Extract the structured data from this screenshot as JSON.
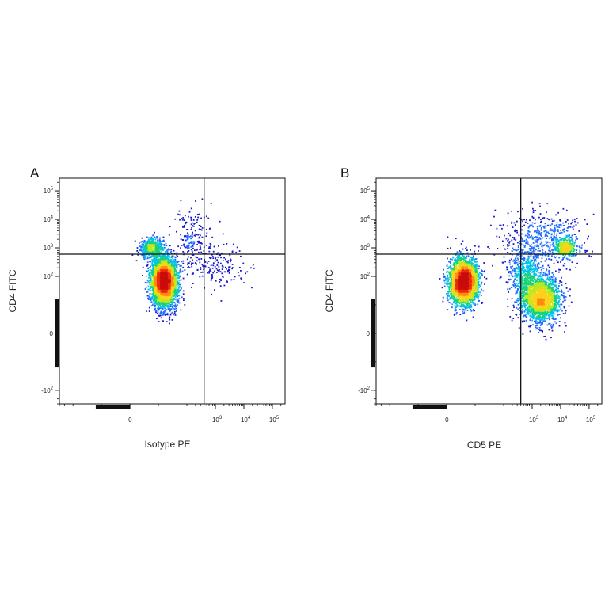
{
  "chart_data": [
    {
      "type": "scatter",
      "subtype": "flow-cytometry-density-dot-plot",
      "panel_label": "A",
      "xlabel": "Isotype PE",
      "ylabel": "CD4 FITC",
      "x_scale": "biexponential",
      "y_scale": "biexponential",
      "x_ticks": [
        {
          "value": 0,
          "base": "0",
          "exp": ""
        },
        {
          "value": 1000,
          "base": "10",
          "exp": "3"
        },
        {
          "value": 10000,
          "base": "10",
          "exp": "4"
        },
        {
          "value": 100000,
          "base": "10",
          "exp": "5"
        }
      ],
      "y_ticks": [
        {
          "value": 100000,
          "base": "10",
          "exp": "5"
        },
        {
          "value": 10000,
          "base": "10",
          "exp": "4"
        },
        {
          "value": 1000,
          "base": "10",
          "exp": "3"
        },
        {
          "value": 100,
          "base": "10",
          "exp": "2"
        },
        {
          "value": 0,
          "base": "0",
          "exp": ""
        },
        {
          "value": -100,
          "base": "-10",
          "exp": "2"
        }
      ],
      "gates": {
        "x": 400,
        "y": 600
      },
      "populations": [
        {
          "x_center": 60,
          "y_center": 90,
          "x_spread": 0.22,
          "y_spread": 0.42,
          "share": 0.82
        },
        {
          "x_center": 40,
          "y_center": 1000,
          "x_spread": 0.2,
          "y_spread": 0.18,
          "share": 0.11
        },
        {
          "x_center": 150,
          "y_center": 1800,
          "x_spread": 0.3,
          "y_spread": 0.55,
          "share": 0.04
        },
        {
          "x_center": 1500,
          "y_center": 200,
          "x_spread": 0.5,
          "y_spread": 0.35,
          "share": 0.03
        }
      ],
      "density_colors": [
        "#1a1acd",
        "#1f6cff",
        "#00c2e8",
        "#18d27a",
        "#bfe81e",
        "#ffd21a",
        "#ff8a10",
        "#ee2a0c",
        "#c80c0c"
      ],
      "grid": false,
      "legend": "none"
    },
    {
      "type": "scatter",
      "subtype": "flow-cytometry-density-dot-plot",
      "panel_label": "B",
      "xlabel": "CD5 PE",
      "ylabel": "CD4 FITC",
      "x_scale": "biexponential",
      "y_scale": "biexponential",
      "x_ticks": [
        {
          "value": 0,
          "base": "0",
          "exp": ""
        },
        {
          "value": 1000,
          "base": "10",
          "exp": "3"
        },
        {
          "value": 10000,
          "base": "10",
          "exp": "4"
        },
        {
          "value": 100000,
          "base": "10",
          "exp": "5"
        }
      ],
      "y_ticks": [
        {
          "value": 100000,
          "base": "10",
          "exp": "5"
        },
        {
          "value": 10000,
          "base": "10",
          "exp": "4"
        },
        {
          "value": 1000,
          "base": "10",
          "exp": "3"
        },
        {
          "value": 100,
          "base": "10",
          "exp": "2"
        },
        {
          "value": 0,
          "base": "0",
          "exp": ""
        },
        {
          "value": -100,
          "base": "-10",
          "exp": "2"
        }
      ],
      "gates": {
        "x": 400,
        "y": 600
      },
      "populations": [
        {
          "x_center": 30,
          "y_center": 90,
          "x_spread": 0.25,
          "y_spread": 0.4,
          "share": 0.46
        },
        {
          "x_center": 2000,
          "y_center": 60,
          "x_spread": 0.35,
          "y_spread": 0.4,
          "share": 0.31
        },
        {
          "x_center": 600,
          "y_center": 120,
          "x_spread": 0.3,
          "y_spread": 0.4,
          "share": 0.08
        },
        {
          "x_center": 15000,
          "y_center": 1000,
          "x_spread": 0.18,
          "y_spread": 0.15,
          "share": 0.07
        },
        {
          "x_center": 2000,
          "y_center": 2000,
          "x_spread": 0.75,
          "y_spread": 0.5,
          "share": 0.08
        }
      ],
      "density_colors": [
        "#1a1acd",
        "#1f6cff",
        "#00c2e8",
        "#18d27a",
        "#bfe81e",
        "#ffd21a",
        "#ff8a10",
        "#ee2a0c",
        "#c80c0c"
      ],
      "grid": false,
      "legend": "none"
    }
  ]
}
